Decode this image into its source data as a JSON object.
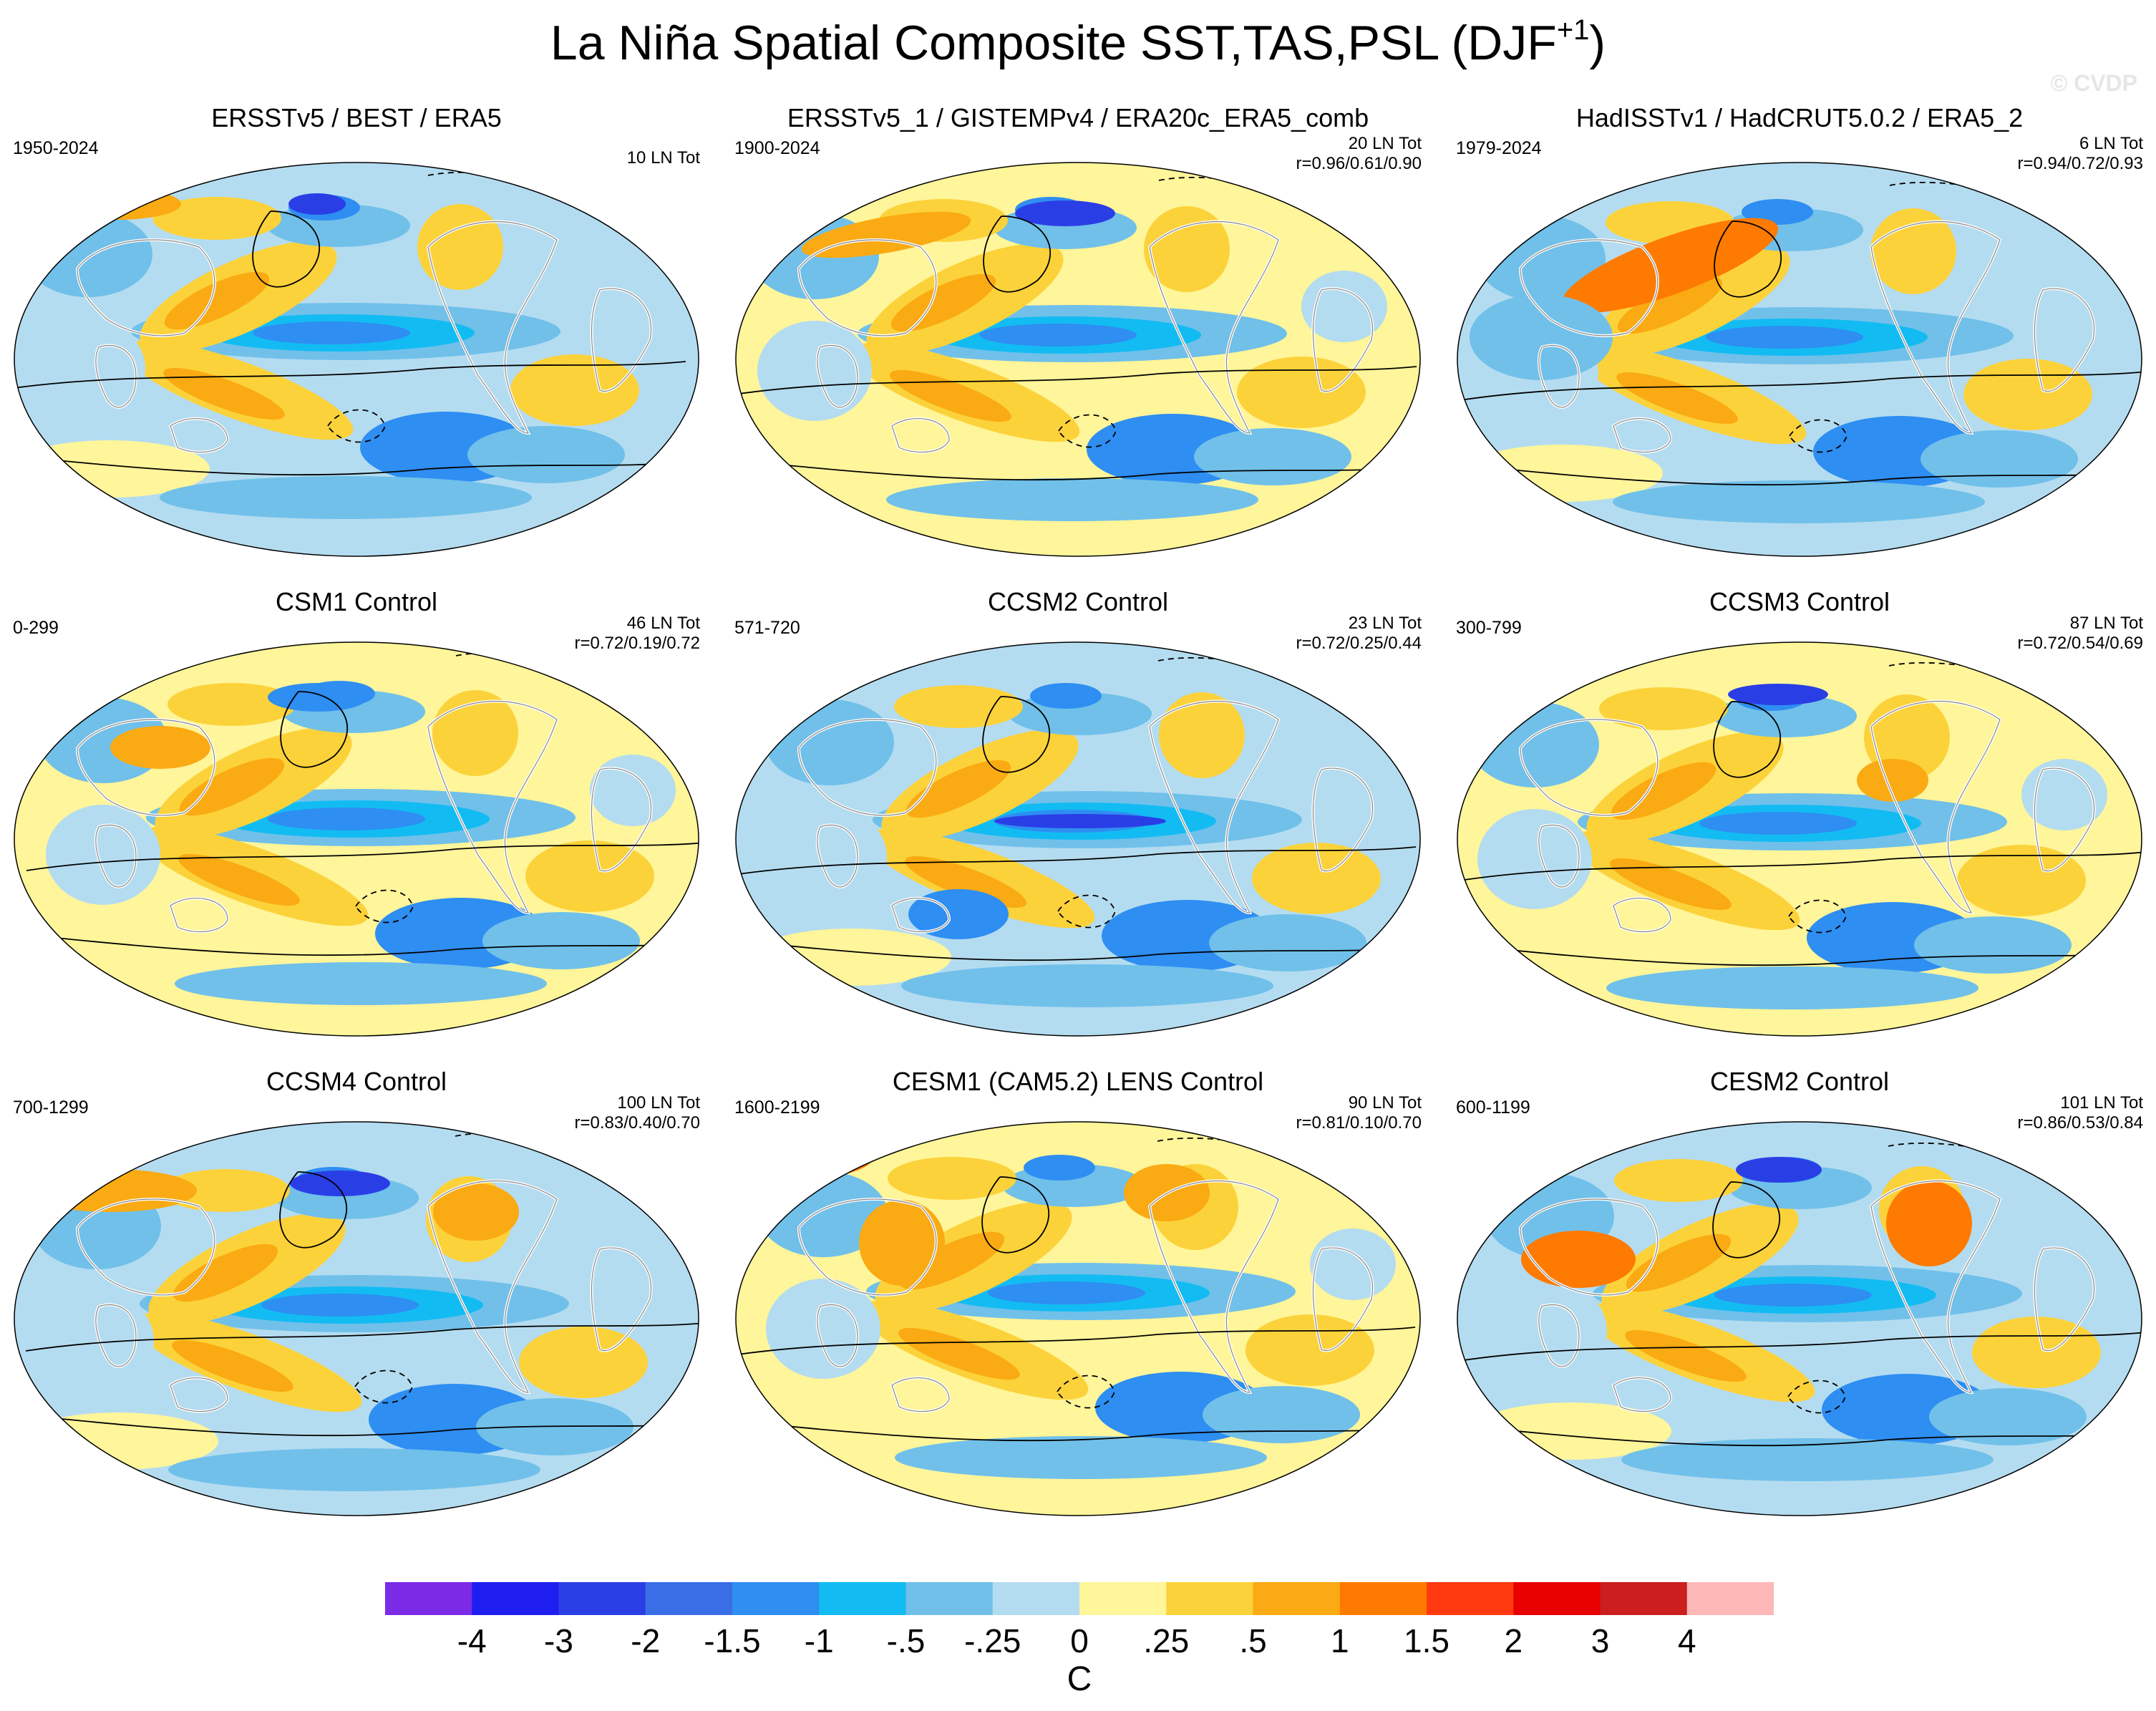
{
  "title": "La Niña Spatial Composite SST,TAS,PSL (DJF",
  "title_sup": "+1",
  "title_end": ")",
  "watermark": "© CVDP",
  "panels": [
    {
      "title": "ERSSTv5 / BEST / ERA5",
      "years": "1950-2024",
      "count": "10 LN Tot",
      "corr": ""
    },
    {
      "title": "ERSSTv5_1 / GISTEMPv4 / ERA20c_ERA5_comb",
      "years": "1900-2024",
      "count": "20 LN Tot",
      "corr": "r=0.96/0.61/0.90"
    },
    {
      "title": "HadISSTv1 / HadCRUT5.0.2 / ERA5_2",
      "years": "1979-2024",
      "count": "6 LN Tot",
      "corr": "r=0.94/0.72/0.93"
    },
    {
      "title": "CSM1 Control",
      "years": "0-299",
      "count": "46 LN Tot",
      "corr": "r=0.72/0.19/0.72"
    },
    {
      "title": "CCSM2 Control",
      "years": "571-720",
      "count": "23 LN Tot",
      "corr": "r=0.72/0.25/0.44"
    },
    {
      "title": "CCSM3 Control",
      "years": "300-799",
      "count": "87 LN Tot",
      "corr": "r=0.72/0.54/0.69"
    },
    {
      "title": "CCSM4 Control",
      "years": "700-1299",
      "count": "100 LN Tot",
      "corr": "r=0.83/0.40/0.70"
    },
    {
      "title": "CESM1 (CAM5.2) LENS Control",
      "years": "1600-2199",
      "count": "90 LN Tot",
      "corr": "r=0.81/0.10/0.70"
    },
    {
      "title": "CESM2 Control",
      "years": "600-1199",
      "count": "101 LN Tot",
      "corr": "r=0.86/0.53/0.84"
    }
  ],
  "colorbar": {
    "labels": [
      "-4",
      "-3",
      "-2",
      "-1.5",
      "-1",
      "-.5",
      "-.25",
      "0",
      ".25",
      ".5",
      "1",
      "1.5",
      "2",
      "3",
      "4"
    ],
    "colors": [
      "#7b2ae6",
      "#1e1ef0",
      "#2a3ee6",
      "#3a6ee6",
      "#2e8ef2",
      "#12bcf2",
      "#70c0ea",
      "#b4dcf0",
      "#fff59a",
      "#fcd23a",
      "#faaa12",
      "#ff7a00",
      "#ff3a10",
      "#e80000",
      "#cc1e1e",
      "#ffb8b8"
    ],
    "units": "C"
  }
}
